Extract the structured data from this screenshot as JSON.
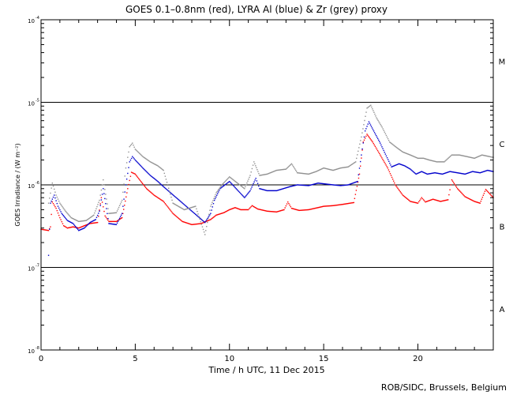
{
  "chart_data": {
    "type": "scatter",
    "title": "GOES 0.1–0.8nm (red), LYRA Al (blue) & Zr (grey) proxy",
    "xlabel": "Time / h UTC, 11 Dec 2015",
    "ylabel": "GOES Irradiance / (W m⁻²)",
    "credit": "ROB/SIDC, Brussels, Belgium",
    "xlim": [
      0,
      24
    ],
    "ylim_log10": [
      -8,
      -4
    ],
    "x_ticks": [
      {
        "value": 0,
        "label": "0"
      },
      {
        "value": 5,
        "label": "5"
      },
      {
        "value": 10,
        "label": "10"
      },
      {
        "value": 15,
        "label": "15"
      },
      {
        "value": 20,
        "label": "20"
      }
    ],
    "y_ticks": [
      {
        "exp": -8,
        "base": "10",
        "sup": "-8"
      },
      {
        "exp": -7,
        "base": "10",
        "sup": "-7"
      },
      {
        "exp": -6,
        "base": "10",
        "sup": "-6"
      },
      {
        "exp": -5,
        "base": "10",
        "sup": "-5"
      },
      {
        "exp": -4,
        "base": "10",
        "sup": "-4"
      }
    ],
    "class_lines_log10": [
      -7,
      -6,
      -5
    ],
    "flare_classes": [
      {
        "label": "A",
        "log10": -7.5
      },
      {
        "label": "B",
        "log10": -6.5
      },
      {
        "label": "C",
        "log10": -5.5
      },
      {
        "label": "M",
        "log10": -4.5
      }
    ],
    "series": [
      {
        "name": "GOES 0.1-0.8nm",
        "color": "#ff0000",
        "points": [
          [
            0,
            2.9e-07
          ],
          [
            0.4,
            2.8e-07
          ],
          [
            0.5,
            3.1e-07
          ],
          [
            0.6,
            6.2e-07
          ],
          [
            0.8,
            5.2e-07
          ],
          [
            1.0,
            4e-07
          ],
          [
            1.2,
            3.2e-07
          ],
          [
            1.4,
            3e-07
          ],
          [
            1.7,
            3.1e-07
          ],
          [
            2.0,
            3e-07
          ],
          [
            2.3,
            3.2e-07
          ],
          [
            2.6,
            3.4e-07
          ],
          [
            3.0,
            3.5e-07
          ],
          [
            3.2,
            7e-07
          ],
          [
            3.4,
            4.2e-07
          ],
          [
            3.6,
            3.6e-07
          ],
          [
            4.0,
            3.6e-07
          ],
          [
            4.3,
            4e-07
          ],
          [
            4.6,
            9e-07
          ],
          [
            4.8,
            1.42e-06
          ],
          [
            5.0,
            1.35e-06
          ],
          [
            5.3,
            1.1e-06
          ],
          [
            5.6,
            9e-07
          ],
          [
            6.0,
            7.5e-07
          ],
          [
            6.5,
            6.3e-07
          ],
          [
            7.0,
            4.5e-07
          ],
          [
            7.5,
            3.6e-07
          ],
          [
            8.0,
            3.3e-07
          ],
          [
            8.5,
            3.4e-07
          ],
          [
            9.0,
            3.8e-07
          ],
          [
            9.3,
            4.3e-07
          ],
          [
            9.7,
            4.6e-07
          ],
          [
            10.0,
            5e-07
          ],
          [
            10.3,
            5.3e-07
          ],
          [
            10.6,
            5e-07
          ],
          [
            11.0,
            5e-07
          ],
          [
            11.2,
            5.6e-07
          ],
          [
            11.5,
            5.1e-07
          ],
          [
            12.0,
            4.8e-07
          ],
          [
            12.5,
            4.7e-07
          ],
          [
            12.9,
            5e-07
          ],
          [
            13.1,
            6.2e-07
          ],
          [
            13.3,
            5.2e-07
          ],
          [
            13.7,
            4.9e-07
          ],
          [
            14.2,
            5e-07
          ],
          [
            14.7,
            5.3e-07
          ],
          [
            15.0,
            5.5e-07
          ],
          [
            15.5,
            5.6e-07
          ],
          [
            16.0,
            5.8e-07
          ],
          [
            16.4,
            6e-07
          ],
          [
            16.6,
            6.1e-07
          ],
          [
            16.9,
            1.35e-06
          ],
          [
            17.1,
            3.3e-06
          ],
          [
            17.3,
            4.1e-06
          ],
          [
            17.6,
            3.3e-06
          ],
          [
            18.0,
            2.3e-06
          ],
          [
            18.4,
            1.6e-06
          ],
          [
            18.8,
            1e-06
          ],
          [
            19.2,
            7.5e-07
          ],
          [
            19.6,
            6.3e-07
          ],
          [
            20.0,
            6e-07
          ],
          [
            20.2,
            7e-07
          ],
          [
            20.4,
            6.2e-07
          ],
          [
            20.8,
            6.7e-07
          ],
          [
            21.2,
            6.3e-07
          ],
          [
            21.6,
            6.6e-07
          ],
          [
            21.8,
            1.15e-06
          ],
          [
            22.1,
            9e-07
          ],
          [
            22.5,
            7.2e-07
          ],
          [
            23.0,
            6.3e-07
          ],
          [
            23.3,
            6e-07
          ],
          [
            23.6,
            8.8e-07
          ],
          [
            24.0,
            7e-07
          ]
        ]
      },
      {
        "name": "LYRA Al proxy",
        "color": "#0000cc",
        "points": [
          [
            0.4,
            1.4e-07
          ],
          [
            0.5,
            6e-07
          ],
          [
            0.7,
            7.5e-07
          ],
          [
            0.9,
            5.5e-07
          ],
          [
            1.1,
            4.5e-07
          ],
          [
            1.4,
            3.7e-07
          ],
          [
            1.7,
            3.4e-07
          ],
          [
            2.0,
            2.8e-07
          ],
          [
            2.3,
            3e-07
          ],
          [
            2.6,
            3.5e-07
          ],
          [
            2.9,
            3.8e-07
          ],
          [
            3.1,
            4.8e-07
          ],
          [
            3.3,
            9e-07
          ],
          [
            3.6,
            3.4e-07
          ],
          [
            4.0,
            3.3e-07
          ],
          [
            4.3,
            4.5e-07
          ],
          [
            4.5,
            1e-06
          ],
          [
            4.7,
            1.9e-06
          ],
          [
            4.85,
            2.2e-06
          ],
          [
            5.0,
            2e-06
          ],
          [
            5.4,
            1.6e-06
          ],
          [
            5.8,
            1.3e-06
          ],
          [
            6.2,
            1.1e-06
          ],
          [
            6.5,
            9.5e-07
          ],
          [
            8.7,
            3.5e-07
          ],
          [
            9.0,
            4.5e-07
          ],
          [
            9.2,
            6.5e-07
          ],
          [
            9.5,
            9e-07
          ],
          [
            10.0,
            1.1e-06
          ],
          [
            10.8,
            7e-07
          ],
          [
            11.1,
            8.5e-07
          ],
          [
            11.4,
            1.2e-06
          ],
          [
            11.6,
            9e-07
          ],
          [
            12.0,
            8.5e-07
          ],
          [
            12.5,
            8.5e-07
          ],
          [
            13.2,
            9.5e-07
          ],
          [
            13.6,
            1e-06
          ],
          [
            14.2,
            9.8e-07
          ],
          [
            14.7,
            1.05e-06
          ],
          [
            15.5,
            1e-06
          ],
          [
            15.9,
            9.8e-07
          ],
          [
            16.3,
            1e-06
          ],
          [
            16.8,
            1.1e-06
          ],
          [
            17.0,
            2.3e-06
          ],
          [
            17.2,
            4.5e-06
          ],
          [
            17.4,
            5.8e-06
          ],
          [
            17.7,
            4.3e-06
          ],
          [
            18.0,
            3.2e-06
          ],
          [
            18.6,
            1.65e-06
          ],
          [
            19.0,
            1.8e-06
          ],
          [
            19.3,
            1.7e-06
          ],
          [
            19.6,
            1.55e-06
          ],
          [
            19.9,
            1.35e-06
          ],
          [
            20.2,
            1.45e-06
          ],
          [
            20.5,
            1.35e-06
          ],
          [
            20.9,
            1.4e-06
          ],
          [
            21.3,
            1.35e-06
          ],
          [
            21.7,
            1.45e-06
          ],
          [
            22.1,
            1.4e-06
          ],
          [
            22.5,
            1.35e-06
          ],
          [
            22.9,
            1.45e-06
          ],
          [
            23.3,
            1.4e-06
          ],
          [
            23.7,
            1.5e-06
          ],
          [
            24.0,
            1.45e-06
          ]
        ]
      },
      {
        "name": "LYRA Zr proxy",
        "color": "#909090",
        "points": [
          [
            0.4,
            6e-07
          ],
          [
            0.6,
            1.05e-06
          ],
          [
            0.8,
            7.5e-07
          ],
          [
            1.0,
            6e-07
          ],
          [
            1.3,
            4.8e-07
          ],
          [
            1.6,
            4e-07
          ],
          [
            2.0,
            3.6e-07
          ],
          [
            2.4,
            3.7e-07
          ],
          [
            2.8,
            4.3e-07
          ],
          [
            3.1,
            6.5e-07
          ],
          [
            3.3,
            1.15e-06
          ],
          [
            3.6,
            4.5e-07
          ],
          [
            4.0,
            4.6e-07
          ],
          [
            4.3,
            6.5e-07
          ],
          [
            4.5,
            1.6e-06
          ],
          [
            4.7,
            2.9e-06
          ],
          [
            4.85,
            3.2e-06
          ],
          [
            5.0,
            2.7e-06
          ],
          [
            5.4,
            2.2e-06
          ],
          [
            5.8,
            1.9e-06
          ],
          [
            6.2,
            1.7e-06
          ],
          [
            6.5,
            1.5e-06
          ],
          [
            7.0,
            6e-07
          ],
          [
            7.6,
            5e-07
          ],
          [
            8.2,
            5.5e-07
          ],
          [
            8.7,
            2.5e-07
          ],
          [
            9.0,
            5.5e-07
          ],
          [
            9.3,
            8e-07
          ],
          [
            9.6,
            1e-06
          ],
          [
            10.0,
            1.25e-06
          ],
          [
            10.8,
            9e-07
          ],
          [
            11.1,
            1.3e-06
          ],
          [
            11.3,
            1.9e-06
          ],
          [
            11.6,
            1.3e-06
          ],
          [
            12.0,
            1.35e-06
          ],
          [
            12.5,
            1.5e-06
          ],
          [
            13.0,
            1.55e-06
          ],
          [
            13.3,
            1.8e-06
          ],
          [
            13.6,
            1.4e-06
          ],
          [
            14.2,
            1.35e-06
          ],
          [
            14.6,
            1.45e-06
          ],
          [
            15.0,
            1.6e-06
          ],
          [
            15.5,
            1.5e-06
          ],
          [
            15.9,
            1.6e-06
          ],
          [
            16.3,
            1.65e-06
          ],
          [
            16.7,
            1.9e-06
          ],
          [
            17.0,
            3.8e-06
          ],
          [
            17.3,
            8.5e-06
          ],
          [
            17.5,
            9.2e-06
          ],
          [
            17.8,
            6.5e-06
          ],
          [
            18.1,
            5e-06
          ],
          [
            18.5,
            3.3e-06
          ],
          [
            18.9,
            2.8e-06
          ],
          [
            19.2,
            2.5e-06
          ],
          [
            19.6,
            2.3e-06
          ],
          [
            20.0,
            2.1e-06
          ],
          [
            20.3,
            2.1e-06
          ],
          [
            20.6,
            2e-06
          ],
          [
            21.0,
            1.9e-06
          ],
          [
            21.4,
            1.9e-06
          ],
          [
            21.8,
            2.3e-06
          ],
          [
            22.2,
            2.3e-06
          ],
          [
            22.6,
            2.2e-06
          ],
          [
            23.0,
            2.1e-06
          ],
          [
            23.4,
            2.3e-06
          ],
          [
            23.8,
            2.2e-06
          ],
          [
            24.0,
            2.15e-06
          ]
        ]
      }
    ]
  }
}
